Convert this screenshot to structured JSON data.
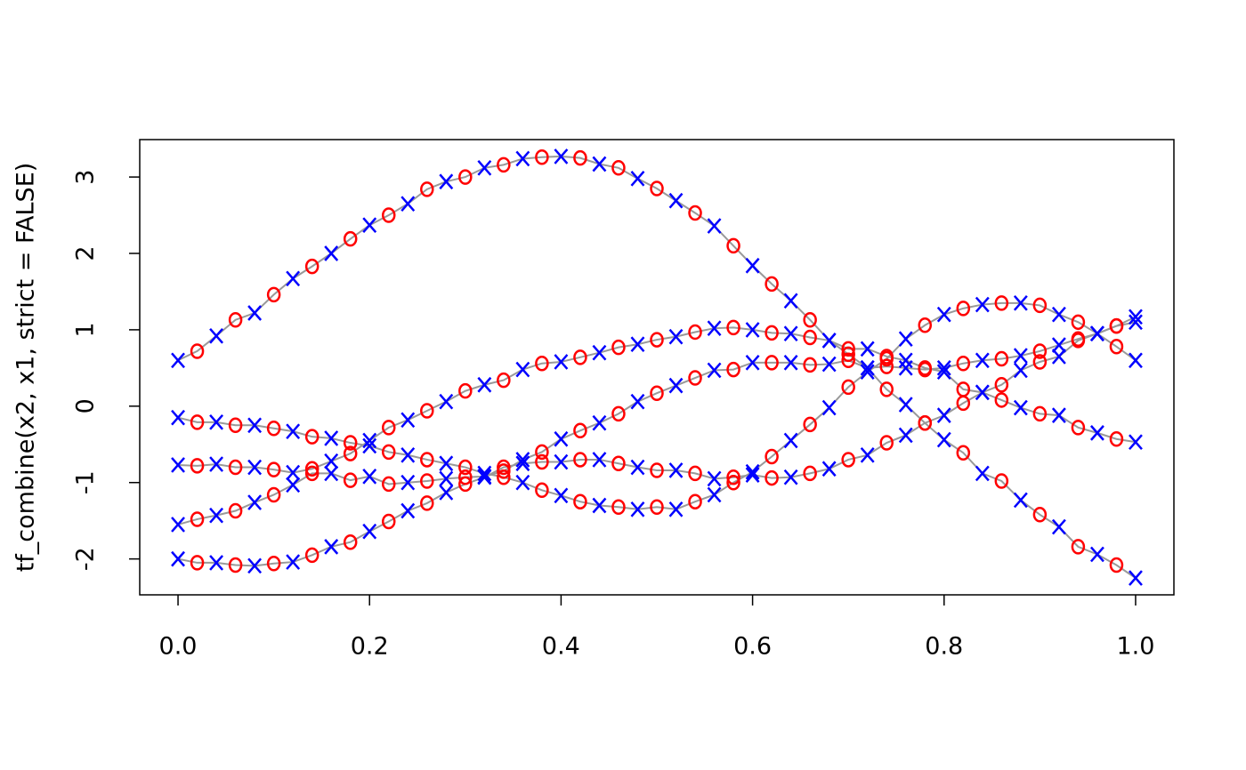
{
  "chart_data": {
    "type": "line",
    "y_label": "tf_combine(x2, x1, strict = FALSE)",
    "x": [
      0,
      0.02,
      0.04,
      0.06,
      0.08,
      0.1,
      0.12,
      0.14,
      0.16,
      0.18,
      0.2,
      0.22,
      0.24,
      0.26,
      0.28,
      0.3,
      0.32,
      0.34,
      0.36,
      0.38,
      0.4,
      0.42,
      0.44,
      0.46,
      0.48,
      0.5,
      0.52,
      0.54,
      0.56,
      0.58,
      0.6,
      0.62,
      0.64,
      0.66,
      0.68,
      0.7,
      0.72,
      0.74,
      0.76,
      0.78,
      0.8,
      0.82,
      0.84,
      0.86,
      0.88,
      0.9,
      0.92,
      0.94,
      0.96,
      0.98,
      1
    ],
    "line_color": "#999999",
    "marker_symbols": [
      "x",
      "o"
    ],
    "marker_colors": [
      "#0000ff",
      "#ff0000"
    ],
    "series": [
      {
        "values": [
          0.6,
          0.72,
          0.92,
          1.13,
          1.22,
          1.46,
          1.67,
          1.83,
          2.0,
          2.19,
          2.37,
          2.5,
          2.65,
          2.84,
          2.94,
          3.0,
          3.12,
          3.16,
          3.24,
          3.26,
          3.27,
          3.25,
          3.17,
          3.12,
          2.98,
          2.85,
          2.69,
          2.53,
          2.36,
          2.1,
          1.84,
          1.6,
          1.38,
          1.13,
          0.86,
          0.68,
          0.5,
          0.22,
          0.02,
          -0.22,
          -0.44,
          -0.61,
          -0.88,
          -0.98,
          -1.23,
          -1.42,
          -1.58,
          -1.84,
          -1.94,
          -2.08,
          -2.25
        ]
      },
      {
        "values": [
          -0.15,
          -0.21,
          -0.21,
          -0.25,
          -0.25,
          -0.29,
          -0.33,
          -0.4,
          -0.42,
          -0.48,
          -0.52,
          -0.6,
          -0.64,
          -0.7,
          -0.75,
          -0.8,
          -0.88,
          -0.93,
          -1.0,
          -1.1,
          -1.17,
          -1.25,
          -1.3,
          -1.32,
          -1.35,
          -1.32,
          -1.35,
          -1.25,
          -1.16,
          -1.0,
          -0.86,
          -0.66,
          -0.45,
          -0.24,
          -0.02,
          0.25,
          0.45,
          0.62,
          0.88,
          1.06,
          1.2,
          1.28,
          1.33,
          1.35,
          1.35,
          1.32,
          1.2,
          1.1,
          0.95,
          0.78,
          0.6
        ]
      },
      {
        "values": [
          -0.77,
          -0.78,
          -0.76,
          -0.8,
          -0.8,
          -0.83,
          -0.87,
          -0.82,
          -0.72,
          -0.62,
          -0.45,
          -0.28,
          -0.18,
          -0.06,
          0.06,
          0.2,
          0.28,
          0.34,
          0.48,
          0.56,
          0.58,
          0.64,
          0.7,
          0.77,
          0.81,
          0.87,
          0.91,
          0.97,
          1.02,
          1.03,
          1.0,
          0.96,
          0.95,
          0.9,
          0.86,
          0.75,
          0.75,
          0.65,
          0.6,
          0.5,
          0.45,
          0.22,
          0.18,
          0.08,
          -0.02,
          -0.1,
          -0.12,
          -0.28,
          -0.35,
          -0.43,
          -0.47
        ]
      },
      {
        "values": [
          -1.55,
          -1.48,
          -1.43,
          -1.37,
          -1.26,
          -1.16,
          -1.03,
          -0.88,
          -0.88,
          -0.97,
          -0.92,
          -1.02,
          -1.0,
          -0.98,
          -0.95,
          -0.93,
          -0.92,
          -0.85,
          -0.7,
          -0.6,
          -0.43,
          -0.32,
          -0.22,
          -0.1,
          0.06,
          0.17,
          0.27,
          0.37,
          0.47,
          0.48,
          0.57,
          0.57,
          0.57,
          0.54,
          0.55,
          0.6,
          0.5,
          0.52,
          0.5,
          0.48,
          0.5,
          0.56,
          0.6,
          0.62,
          0.66,
          0.72,
          0.8,
          0.88,
          0.95,
          1.05,
          1.17
        ]
      },
      {
        "values": [
          -2.0,
          -2.05,
          -2.05,
          -2.08,
          -2.09,
          -2.06,
          -2.04,
          -1.95,
          -1.84,
          -1.78,
          -1.64,
          -1.51,
          -1.37,
          -1.27,
          -1.13,
          -1.02,
          -0.93,
          -0.8,
          -0.75,
          -0.73,
          -0.73,
          -0.7,
          -0.7,
          -0.75,
          -0.8,
          -0.84,
          -0.84,
          -0.88,
          -0.95,
          -0.93,
          -0.9,
          -0.94,
          -0.93,
          -0.88,
          -0.82,
          -0.7,
          -0.64,
          -0.48,
          -0.38,
          -0.22,
          -0.12,
          0.04,
          0.18,
          0.28,
          0.47,
          0.58,
          0.65,
          0.86,
          0.95,
          1.05,
          1.1
        ]
      }
    ],
    "xlim": [
      -0.04,
      1.04
    ],
    "ylim": [
      -2.47,
      3.49
    ],
    "xticks": [
      {
        "value": 0,
        "label": "0.0"
      },
      0.2,
      0.4,
      0.6,
      0.8,
      {
        "value": 1,
        "label": "1.0"
      }
    ],
    "yticks": [
      -2,
      -1,
      0,
      1,
      2,
      3
    ]
  }
}
